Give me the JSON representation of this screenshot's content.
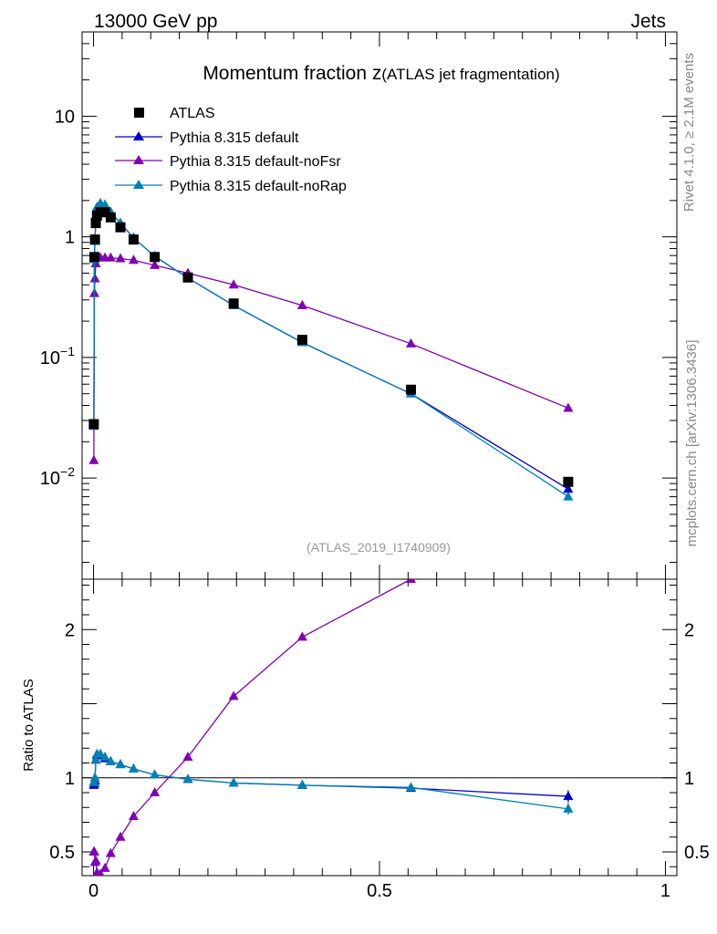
{
  "header": {
    "energy_label": "13000 GeV pp",
    "category_label": "Jets"
  },
  "side_labels": {
    "rivet": "Rivet 4.1.0, ≥ 2.1M events",
    "mcplots": "mcplots.cern.ch [arXiv:1306.3436]"
  },
  "colors": {
    "data": "#000000",
    "default": "#0000cc",
    "noFsr": "#8000b3",
    "noRap": "#0080b3"
  },
  "chart_data": [
    {
      "type": "line",
      "title_main": "Momentum fraction z",
      "title_sub": "(ATLAS jet fragmentation)",
      "analysis_id": "(ATLAS_2019_I1740909)",
      "xlabel": "",
      "ylabel": "",
      "yscale": "log",
      "xlim": [
        -0.02,
        1.02
      ],
      "ylim": [
        0.00145,
        50
      ],
      "y_ticks": [
        {
          "value": 10,
          "label": "10"
        },
        {
          "value": 1,
          "label": "1"
        },
        {
          "value": 0.1,
          "label": "10^-1"
        },
        {
          "value": 0.01,
          "label": "10^-2"
        }
      ],
      "legend": [
        "ATLAS",
        "Pythia 8.315 default",
        "Pythia 8.315 default-noFsr",
        "Pythia 8.315 default-noRap"
      ],
      "legend_position": "top-left",
      "series": [
        {
          "name": "ATLAS",
          "marker": "square",
          "color_key": "data",
          "points": [
            [
              0.0005,
              0.028
            ],
            [
              0.0015,
              0.68
            ],
            [
              0.0025,
              0.95
            ],
            [
              0.004,
              1.3
            ],
            [
              0.006,
              1.5
            ],
            [
              0.012,
              1.6
            ],
            [
              0.02,
              1.6
            ],
            [
              0.03,
              1.45
            ],
            [
              0.047,
              1.2
            ],
            [
              0.07,
              0.95
            ],
            [
              0.107,
              0.68
            ],
            [
              0.165,
              0.46
            ],
            [
              0.245,
              0.28
            ],
            [
              0.365,
              0.14
            ],
            [
              0.555,
              0.054
            ],
            [
              0.83,
              0.0093
            ]
          ]
        },
        {
          "name": "Pythia 8.315 default",
          "marker": "triangle",
          "color_key": "default",
          "points": [
            [
              0.0005,
              0.027
            ],
            [
              0.0015,
              0.65
            ],
            [
              0.0025,
              0.92
            ],
            [
              0.004,
              1.5
            ],
            [
              0.006,
              1.75
            ],
            [
              0.012,
              1.85
            ],
            [
              0.02,
              1.8
            ],
            [
              0.03,
              1.6
            ],
            [
              0.047,
              1.3
            ],
            [
              0.07,
              0.98
            ],
            [
              0.107,
              0.69
            ],
            [
              0.165,
              0.455
            ],
            [
              0.245,
              0.27
            ],
            [
              0.365,
              0.133
            ],
            [
              0.555,
              0.05
            ],
            [
              0.83,
              0.0081
            ]
          ]
        },
        {
          "name": "Pythia 8.315 default-noFsr",
          "marker": "triangle",
          "color_key": "noFsr",
          "points": [
            [
              0.0005,
              0.014
            ],
            [
              0.0015,
              0.34
            ],
            [
              0.0025,
              0.45
            ],
            [
              0.004,
              0.6
            ],
            [
              0.006,
              0.68
            ],
            [
              0.012,
              0.67
            ],
            [
              0.02,
              0.67
            ],
            [
              0.03,
              0.67
            ],
            [
              0.047,
              0.66
            ],
            [
              0.07,
              0.64
            ],
            [
              0.107,
              0.58
            ],
            [
              0.165,
              0.5
            ],
            [
              0.245,
              0.4
            ],
            [
              0.365,
              0.27
            ],
            [
              0.555,
              0.13
            ],
            [
              0.83,
              0.038
            ]
          ]
        },
        {
          "name": "Pythia 8.315 default-noRap",
          "marker": "triangle",
          "color_key": "noRap",
          "points": [
            [
              0.0005,
              0.027
            ],
            [
              0.0015,
              0.65
            ],
            [
              0.0025,
              0.92
            ],
            [
              0.004,
              1.5
            ],
            [
              0.006,
              1.75
            ],
            [
              0.012,
              1.9
            ],
            [
              0.02,
              1.85
            ],
            [
              0.03,
              1.6
            ],
            [
              0.047,
              1.3
            ],
            [
              0.07,
              0.98
            ],
            [
              0.107,
              0.69
            ],
            [
              0.165,
              0.455
            ],
            [
              0.245,
              0.27
            ],
            [
              0.365,
              0.133
            ],
            [
              0.555,
              0.05
            ],
            [
              0.83,
              0.007
            ]
          ]
        }
      ]
    },
    {
      "type": "line",
      "ylabel": "Ratio to ATLAS",
      "xlabel": "",
      "xlim": [
        -0.02,
        1.02
      ],
      "ylim": [
        0.34,
        2.34
      ],
      "reference_line": 1,
      "y_ticks": [
        {
          "value": 2,
          "label": "2"
        },
        {
          "value": 1,
          "label": "1"
        },
        {
          "value": 0.5,
          "label": "0.5"
        }
      ],
      "x_ticks": [
        {
          "value": 0,
          "label": "0"
        },
        {
          "value": 0.5,
          "label": "0.5"
        },
        {
          "value": 1,
          "label": "1"
        }
      ],
      "series": [
        {
          "name": "Pythia 8.315 default",
          "color_key": "default",
          "points": [
            [
              0.0005,
              0.95
            ],
            [
              0.0015,
              0.96
            ],
            [
              0.0025,
              0.98
            ],
            [
              0.004,
              1.12
            ],
            [
              0.006,
              1.15
            ],
            [
              0.012,
              1.15
            ],
            [
              0.02,
              1.13
            ],
            [
              0.03,
              1.11
            ],
            [
              0.047,
              1.09
            ],
            [
              0.07,
              1.06
            ],
            [
              0.107,
              1.02
            ],
            [
              0.165,
              0.99
            ],
            [
              0.245,
              0.965
            ],
            [
              0.365,
              0.95
            ],
            [
              0.555,
              0.93
            ],
            [
              0.83,
              0.875
            ]
          ],
          "error_last": 0.04
        },
        {
          "name": "Pythia 8.315 default-noFsr",
          "color_key": "noFsr",
          "points": [
            [
              0.0005,
              0.5
            ],
            [
              0.0015,
              0.5
            ],
            [
              0.0025,
              0.43
            ],
            [
              0.004,
              0.44
            ],
            [
              0.006,
              0.36
            ],
            [
              0.012,
              0.35
            ],
            [
              0.02,
              0.39
            ],
            [
              0.03,
              0.49
            ],
            [
              0.047,
              0.6
            ],
            [
              0.07,
              0.74
            ],
            [
              0.107,
              0.9
            ],
            [
              0.165,
              1.14
            ],
            [
              0.245,
              1.55
            ],
            [
              0.365,
              1.95
            ],
            [
              0.555,
              2.34
            ]
          ]
        },
        {
          "name": "Pythia 8.315 default-noRap",
          "color_key": "noRap",
          "points": [
            [
              0.0005,
              0.97
            ],
            [
              0.0015,
              0.97
            ],
            [
              0.0025,
              1.0
            ],
            [
              0.004,
              1.12
            ],
            [
              0.006,
              1.16
            ],
            [
              0.012,
              1.16
            ],
            [
              0.02,
              1.14
            ],
            [
              0.03,
              1.11
            ],
            [
              0.047,
              1.09
            ],
            [
              0.07,
              1.06
            ],
            [
              0.107,
              1.02
            ],
            [
              0.165,
              0.99
            ],
            [
              0.245,
              0.965
            ],
            [
              0.365,
              0.95
            ],
            [
              0.555,
              0.935
            ],
            [
              0.83,
              0.79
            ]
          ],
          "error_last": 0.04
        }
      ]
    }
  ]
}
